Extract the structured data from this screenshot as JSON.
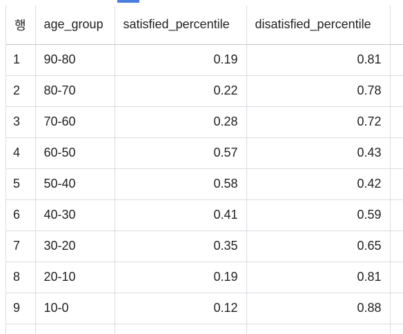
{
  "header": {
    "row_label": "행",
    "columns": [
      "age_group",
      "satisfied_percentile",
      "disatisfied_percentile"
    ]
  },
  "rows": [
    {
      "n": "1",
      "age_group": "90-80",
      "satisfied": "0.19",
      "disatisfied": "0.81"
    },
    {
      "n": "2",
      "age_group": "80-70",
      "satisfied": "0.22",
      "disatisfied": "0.78"
    },
    {
      "n": "3",
      "age_group": "70-60",
      "satisfied": "0.28",
      "disatisfied": "0.72"
    },
    {
      "n": "4",
      "age_group": "60-50",
      "satisfied": "0.57",
      "disatisfied": "0.43"
    },
    {
      "n": "5",
      "age_group": "50-40",
      "satisfied": "0.58",
      "disatisfied": "0.42"
    },
    {
      "n": "6",
      "age_group": "40-30",
      "satisfied": "0.41",
      "disatisfied": "0.59"
    },
    {
      "n": "7",
      "age_group": "30-20",
      "satisfied": "0.35",
      "disatisfied": "0.65"
    },
    {
      "n": "8",
      "age_group": "20-10",
      "satisfied": "0.19",
      "disatisfied": "0.81"
    },
    {
      "n": "9",
      "age_group": "10-0",
      "satisfied": "0.12",
      "disatisfied": "0.88"
    }
  ],
  "colors": {
    "border": "#dadce0",
    "accent": "#4a7fe0"
  }
}
